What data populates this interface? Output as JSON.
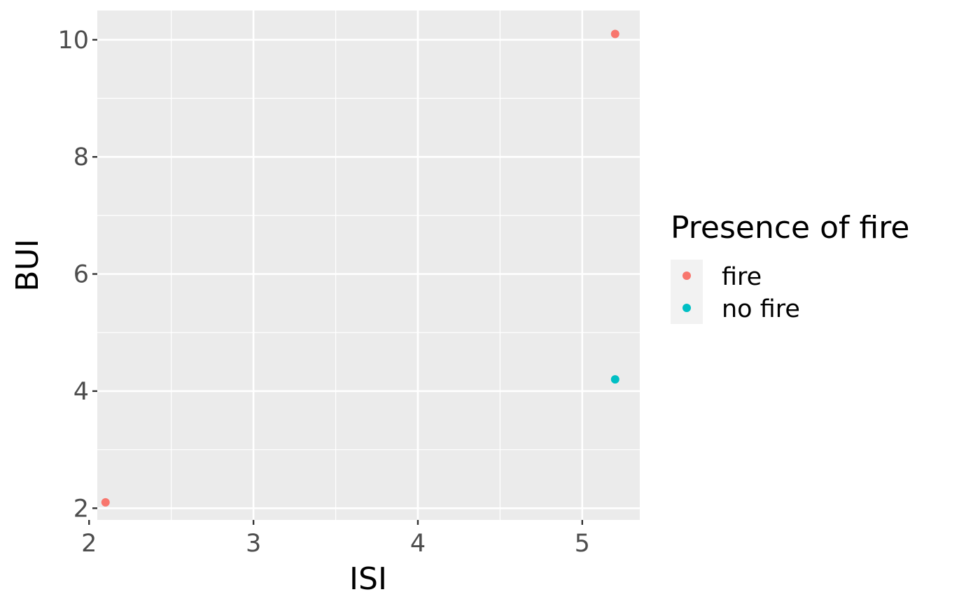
{
  "chart_data": {
    "type": "scatter",
    "xlabel": "ISI",
    "ylabel": "BUI",
    "xlim": [
      2.05,
      5.35
    ],
    "ylim": [
      1.8,
      10.5
    ],
    "xticks": [
      2,
      3,
      4,
      5
    ],
    "yticks": [
      2,
      4,
      6,
      8,
      10
    ],
    "xtick_labels": [
      "2",
      "3",
      "4",
      "5"
    ],
    "ytick_labels": [
      "2",
      "4",
      "6",
      "8",
      "10"
    ],
    "grid": true,
    "legend": {
      "title": "Presence of fire",
      "placement": "right"
    },
    "series": [
      {
        "name": "fire",
        "color": "#F8766D",
        "points": [
          {
            "x": 2.1,
            "y": 2.1
          },
          {
            "x": 5.2,
            "y": 10.1
          }
        ]
      },
      {
        "name": "no fire",
        "color": "#00BFC4",
        "points": [
          {
            "x": 5.2,
            "y": 4.2
          }
        ]
      }
    ]
  }
}
